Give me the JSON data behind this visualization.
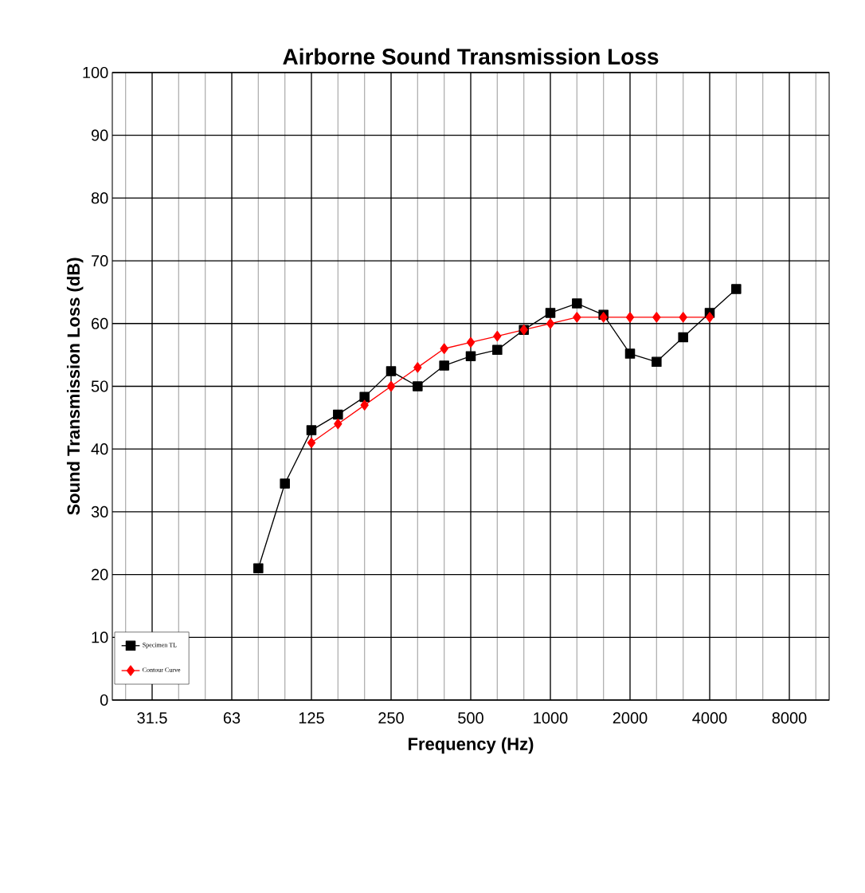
{
  "chart_data": {
    "type": "line",
    "title": "Airborne Sound Transmission Loss",
    "xlabel": "Frequency (Hz)",
    "ylabel": "Sound Transmission Loss (dB)",
    "categories": [
      null,
      "31.5",
      null,
      null,
      "63",
      null,
      null,
      "125",
      null,
      null,
      "250",
      null,
      null,
      "500",
      null,
      null,
      "1000",
      null,
      null,
      "2000",
      null,
      null,
      "4000",
      null,
      null,
      "8000",
      null
    ],
    "series": [
      {
        "name": "Specimen TL",
        "color": "#000000",
        "marker": "square",
        "values": [
          null,
          null,
          null,
          null,
          null,
          21,
          34.5,
          43,
          45.5,
          48.3,
          52.4,
          50,
          53.3,
          54.8,
          55.8,
          59,
          61.7,
          63.2,
          61.4,
          55.2,
          53.9,
          57.8,
          61.7,
          65.5,
          null,
          null,
          null
        ]
      },
      {
        "name": "Contour Curve",
        "color": "#ff0000",
        "marker": "diamond",
        "values": [
          null,
          null,
          null,
          null,
          null,
          null,
          null,
          41,
          44,
          47,
          50,
          53,
          56,
          57,
          58,
          59,
          60,
          61,
          61,
          61,
          61,
          61,
          61,
          null,
          null,
          null,
          null
        ]
      }
    ],
    "ylim": [
      0,
      100
    ],
    "yticks": [
      0,
      10,
      20,
      30,
      40,
      50,
      60,
      70,
      80,
      90,
      100
    ],
    "grid": true,
    "legend": "bottom left",
    "line_style": "solid"
  }
}
